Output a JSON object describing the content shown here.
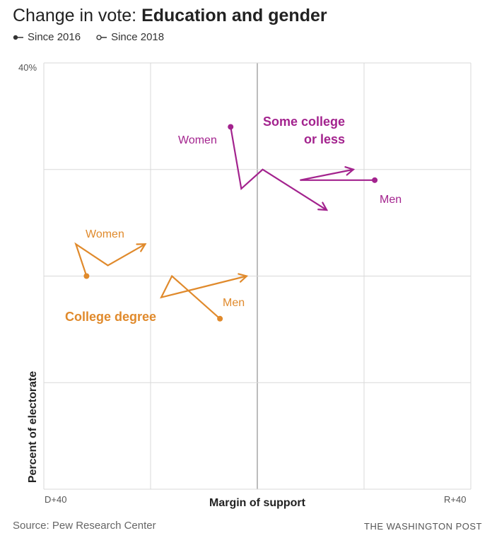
{
  "header": {
    "title_light": "Change in vote: ",
    "title_bold": "Education and gender"
  },
  "legend": [
    {
      "label": "Since 2016",
      "marker": "filled-dot"
    },
    {
      "label": "Since 2018",
      "marker": "open-dot"
    }
  ],
  "footer": {
    "source": "Source: Pew Research Center",
    "credit": "THE WASHINGTON POST"
  },
  "colors": {
    "some_college": "#a3238e",
    "college_degree": "#e08a2c",
    "grid": "#d9d9d9",
    "center_line": "#999999"
  },
  "chart_data": {
    "type": "line",
    "title": "Change in vote: Education and gender",
    "xlabel": "Margin of support",
    "ylabel": "Percent of electorate",
    "xlim": [
      -40,
      40
    ],
    "ylim": [
      0,
      40
    ],
    "x_tick_labels": {
      "left": "D+40",
      "right": "R+40"
    },
    "y_tick_labels": [
      "40%"
    ],
    "grid": true,
    "groups": [
      {
        "label_line1": "Some college",
        "label_line2": "or less",
        "color_key": "some_college"
      },
      {
        "label_line1": "College degree",
        "label_line2": "",
        "color_key": "college_degree"
      }
    ],
    "series": [
      {
        "name": "Women",
        "group": "Some college or less",
        "color_key": "some_college",
        "points": [
          [
            -5,
            34
          ],
          [
            -3,
            28.2
          ],
          [
            1,
            30
          ],
          [
            13,
            26.2
          ]
        ]
      },
      {
        "name": "Men",
        "group": "Some college or less",
        "color_key": "some_college",
        "points": [
          [
            22,
            29
          ],
          [
            8,
            29
          ],
          [
            18,
            30
          ]
        ]
      },
      {
        "name": "Women",
        "group": "College degree",
        "color_key": "college_degree",
        "points": [
          [
            -32,
            20
          ],
          [
            -34,
            23
          ],
          [
            -28,
            21
          ],
          [
            -21,
            23
          ]
        ]
      },
      {
        "name": "Men",
        "group": "College degree",
        "color_key": "college_degree",
        "points": [
          [
            -7,
            16
          ],
          [
            -16,
            20
          ],
          [
            -18,
            18
          ],
          [
            -2,
            20
          ]
        ]
      }
    ]
  }
}
